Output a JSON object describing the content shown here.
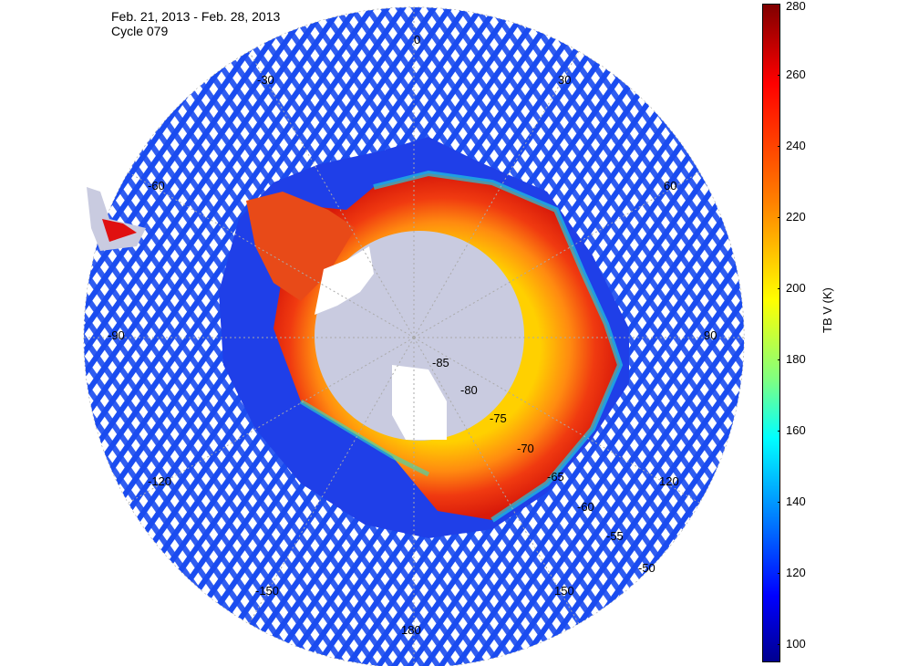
{
  "title": {
    "date_range": "Feb. 21, 2013 - Feb. 28, 2013",
    "cycle": "Cycle 079"
  },
  "map": {
    "projection": "south-polar-stereographic",
    "longitude_labels": [
      "0",
      "30",
      "60",
      "90",
      "120",
      "150",
      "180",
      "-150",
      "-120",
      "-90",
      "-60",
      "-30"
    ],
    "latitude_labels": [
      "-85",
      "-80",
      "-75",
      "-70",
      "-65",
      "-60",
      "-55",
      "-50"
    ],
    "colors": {
      "land": "#c9cbe0",
      "ocean_swath": "#1a4cf0",
      "ice_shelf": "#ffffff",
      "grid": "#999999"
    }
  },
  "colorbar": {
    "label": "TB V (K)",
    "range": [
      95,
      280
    ],
    "ticks": [
      "280",
      "260",
      "240",
      "220",
      "200",
      "180",
      "160",
      "140",
      "120",
      "100"
    ],
    "colormap": "jet"
  }
}
